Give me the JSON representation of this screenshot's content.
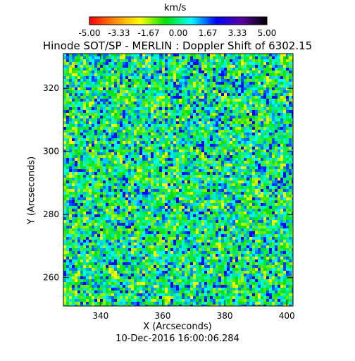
{
  "chart_data": {
    "type": "heatmap",
    "title": "Hinode SOT/SP - MERLIN : Doppler Shift of 6302.15",
    "xlabel": "X (Arcseconds)",
    "ylabel": "Y (Arcseconds)",
    "xlim": [
      328,
      402
    ],
    "ylim": [
      251,
      331
    ],
    "xticks": [
      340,
      360,
      380,
      400
    ],
    "yticks": [
      260,
      280,
      300,
      320
    ],
    "date": "10-Dec-2016 16:00:06.284",
    "colorbar": {
      "unit": "km/s",
      "range": [
        -5.0,
        5.0
      ],
      "tick_labels": [
        "-5.00",
        "-3.33",
        "-1.67",
        "0.00",
        "1.67",
        "3.33",
        "5.00"
      ],
      "colors": [
        "#ff0000",
        "#ff8c00",
        "#ffff00",
        "#00e000",
        "#00ffff",
        "#0000ff",
        "#5a00a0",
        "#000000"
      ]
    },
    "typical_value_range": [
      -1.7,
      1.7
    ]
  }
}
